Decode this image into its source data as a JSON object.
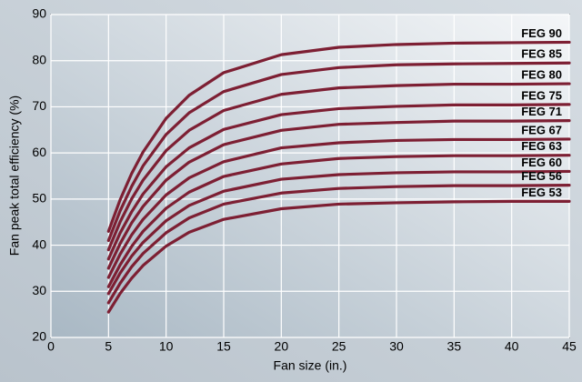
{
  "chart_data": {
    "type": "line",
    "xlabel": "Fan size (in.)",
    "ylabel": "Fan peak total efficiency (%)",
    "x": [
      5,
      6,
      7,
      8,
      10,
      12,
      15,
      20,
      25,
      30,
      35,
      40,
      45
    ],
    "xlim": [
      0,
      45
    ],
    "xticks": [
      0,
      5,
      10,
      15,
      20,
      25,
      30,
      35,
      40,
      45
    ],
    "ylim": [
      20,
      90
    ],
    "yticks": [
      20,
      30,
      40,
      50,
      60,
      70,
      80,
      90
    ],
    "grid": true,
    "series": [
      {
        "name": "FEG 90",
        "color": "#7d1f33",
        "values": [
          43,
          49.8,
          55.5,
          60.2,
          67.5,
          72.5,
          77.4,
          81.3,
          82.9,
          83.5,
          83.8,
          83.9,
          84
        ]
      },
      {
        "name": "FEG 85",
        "color": "#7d1f33",
        "values": [
          41,
          47.4,
          52.7,
          57.2,
          64.0,
          68.7,
          73.3,
          77.0,
          78.5,
          79.1,
          79.3,
          79.4,
          79.5
        ]
      },
      {
        "name": "FEG 80",
        "color": "#7d1f33",
        "values": [
          39,
          45.0,
          50.0,
          54.1,
          60.5,
          64.9,
          69.2,
          72.7,
          74.1,
          74.6,
          74.9,
          74.9,
          75
        ]
      },
      {
        "name": "FEG 75",
        "color": "#7d1f33",
        "values": [
          37,
          42.6,
          47.2,
          51.1,
          57.0,
          61.1,
          65.1,
          68.3,
          69.6,
          70.1,
          70.4,
          70.4,
          70.5
        ]
      },
      {
        "name": "FEG 71",
        "color": "#7d1f33",
        "values": [
          35,
          40.3,
          44.8,
          48.4,
          54.1,
          58.0,
          61.8,
          64.9,
          66.2,
          66.6,
          66.9,
          66.9,
          67
        ]
      },
      {
        "name": "FEG 67",
        "color": "#7d1f33",
        "values": [
          33,
          38.0,
          42.2,
          45.6,
          50.9,
          54.6,
          58.1,
          61.1,
          62.2,
          62.7,
          62.9,
          62.9,
          63
        ]
      },
      {
        "name": "FEG 63",
        "color": "#7d1f33",
        "values": [
          31,
          35.7,
          39.7,
          43.0,
          48.0,
          51.5,
          54.9,
          57.6,
          58.8,
          59.2,
          59.4,
          59.4,
          59.5
        ]
      },
      {
        "name": "FEG 60",
        "color": "#7d1f33",
        "values": [
          29.5,
          33.9,
          37.6,
          40.6,
          45.3,
          48.6,
          51.7,
          54.3,
          55.3,
          55.7,
          55.9,
          55.9,
          56
        ]
      },
      {
        "name": "FEG 56",
        "color": "#7d1f33",
        "values": [
          27.5,
          31.7,
          35.3,
          38.2,
          42.7,
          45.9,
          48.9,
          51.3,
          52.3,
          52.7,
          52.9,
          52.9,
          53
        ]
      },
      {
        "name": "FEG 53",
        "color": "#7d1f33",
        "values": [
          25.5,
          29.5,
          32.8,
          35.6,
          39.8,
          42.8,
          45.6,
          47.9,
          48.9,
          49.2,
          49.4,
          49.5,
          49.5
        ]
      }
    ]
  }
}
